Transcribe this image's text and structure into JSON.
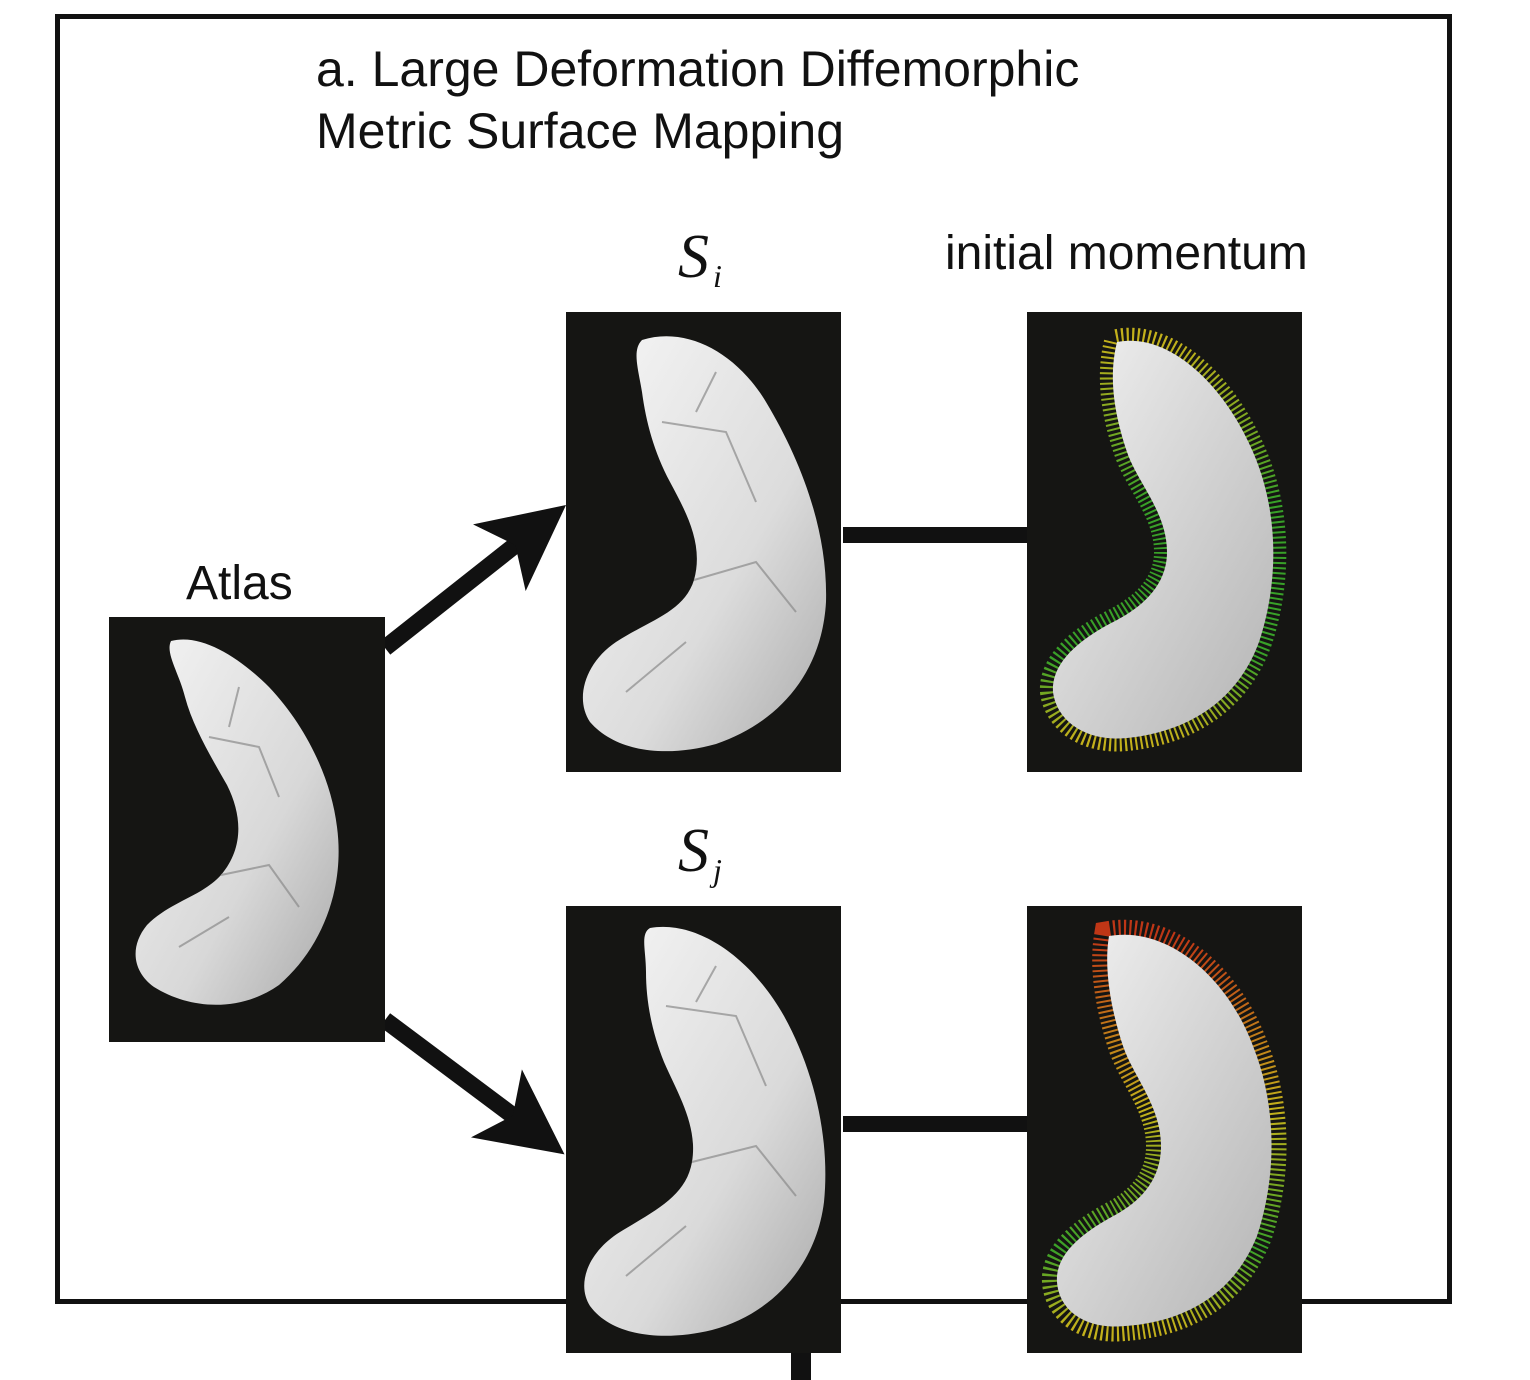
{
  "title": {
    "line1": "a. Large Deformation Diffemorphic",
    "line2": "Metric Surface Mapping"
  },
  "atlas": {
    "label": "Atlas"
  },
  "subject_i": {
    "symbol": "S",
    "subscript": "i"
  },
  "subject_j": {
    "symbol": "S",
    "subscript": "j"
  },
  "momentum": {
    "label": "initial momentum"
  },
  "colors": {
    "panel_background": "#151513",
    "surface": "#e6e6e6",
    "arrow": "#111111",
    "momentum_low": "#3cb02a",
    "momentum_mid": "#d6c21c",
    "momentum_high": "#d23a16"
  },
  "icons": {
    "atlas_surface": "hippocampus-surface-icon",
    "momentum_vectors": "vector-field-icon"
  }
}
